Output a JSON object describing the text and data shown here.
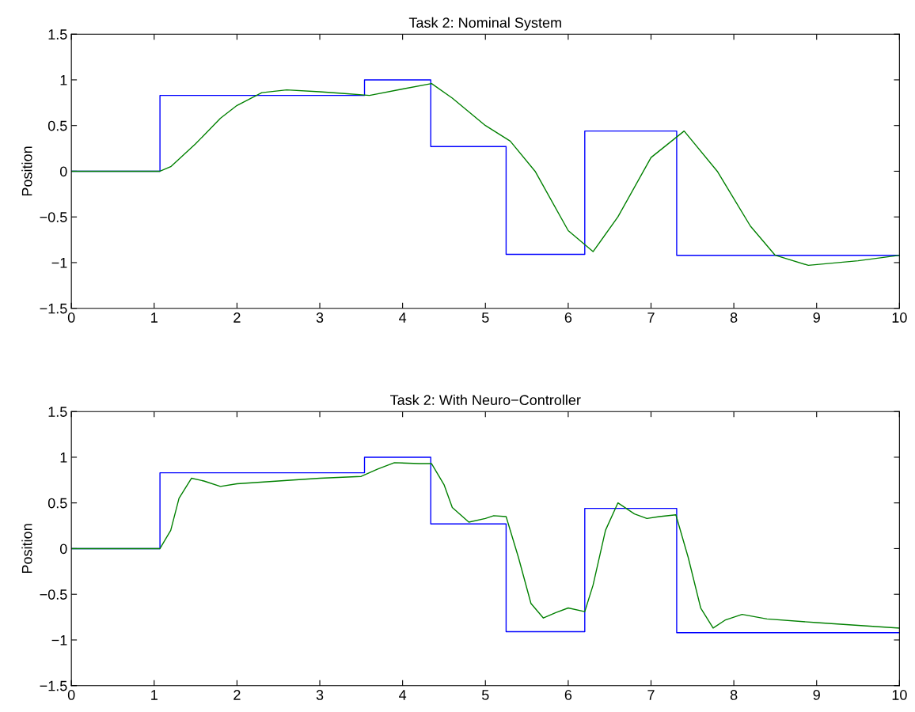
{
  "chart_data": [
    {
      "type": "line",
      "title": "Task 2: Nominal System",
      "ylabel": "Position",
      "xlim": [
        0,
        10
      ],
      "ylim": [
        -1.5,
        1.5
      ],
      "xticks": [
        0,
        1,
        2,
        3,
        4,
        5,
        6,
        7,
        8,
        9,
        10
      ],
      "yticks": [
        -1.5,
        -1,
        -0.5,
        0,
        0.5,
        1,
        1.5
      ],
      "series": [
        {
          "type": "step",
          "color": "#0000ff",
          "x": [
            0,
            1.07,
            3.54,
            4.34,
            5.25,
            6.2,
            7.31,
            10
          ],
          "values": [
            0,
            0.83,
            1.0,
            0.27,
            -0.91,
            0.44,
            -0.92,
            -0.92
          ]
        },
        {
          "color": "#008000",
          "x": [
            0,
            1.07,
            1.2,
            1.5,
            1.8,
            2.0,
            2.3,
            2.6,
            3.0,
            3.3,
            3.6,
            4.0,
            4.35,
            4.6,
            5.0,
            5.3,
            5.6,
            6.0,
            6.3,
            6.6,
            7.0,
            7.4,
            7.8,
            8.2,
            8.5,
            8.9,
            9.5,
            10
          ],
          "values": [
            0,
            0,
            0.05,
            0.3,
            0.58,
            0.72,
            0.86,
            0.89,
            0.87,
            0.85,
            0.83,
            0.9,
            0.96,
            0.8,
            0.5,
            0.33,
            0.0,
            -0.65,
            -0.88,
            -0.5,
            0.15,
            0.44,
            0.0,
            -0.6,
            -0.92,
            -1.03,
            -0.98,
            -0.92
          ]
        }
      ]
    },
    {
      "type": "line",
      "title": "Task 2: With Neuro−Controller",
      "ylabel": "Position",
      "xlim": [
        0,
        10
      ],
      "ylim": [
        -1.5,
        1.5
      ],
      "xticks": [
        0,
        1,
        2,
        3,
        4,
        5,
        6,
        7,
        8,
        9,
        10
      ],
      "yticks": [
        -1.5,
        -1,
        -0.5,
        0,
        0.5,
        1,
        1.5
      ],
      "series": [
        {
          "type": "step",
          "color": "#0000ff",
          "x": [
            0,
            1.07,
            3.54,
            4.34,
            5.25,
            6.2,
            7.31,
            10
          ],
          "values": [
            0,
            0.83,
            1.0,
            0.27,
            -0.91,
            0.44,
            -0.92,
            -0.92
          ]
        },
        {
          "color": "#008000",
          "x": [
            0,
            1.07,
            1.2,
            1.3,
            1.45,
            1.6,
            1.8,
            2.0,
            2.5,
            3.0,
            3.5,
            3.7,
            3.9,
            4.2,
            4.35,
            4.5,
            4.6,
            4.8,
            5.0,
            5.1,
            5.25,
            5.4,
            5.55,
            5.7,
            5.85,
            6.0,
            6.2,
            6.3,
            6.45,
            6.6,
            6.8,
            6.95,
            7.1,
            7.3,
            7.45,
            7.6,
            7.75,
            7.9,
            8.1,
            8.4,
            9.0,
            9.5,
            10
          ],
          "values": [
            0,
            0,
            0.2,
            0.55,
            0.77,
            0.74,
            0.68,
            0.71,
            0.74,
            0.77,
            0.79,
            0.87,
            0.94,
            0.93,
            0.93,
            0.7,
            0.45,
            0.29,
            0.33,
            0.36,
            0.35,
            -0.1,
            -0.6,
            -0.76,
            -0.7,
            -0.65,
            -0.69,
            -0.4,
            0.2,
            0.5,
            0.38,
            0.33,
            0.35,
            0.37,
            -0.1,
            -0.65,
            -0.87,
            -0.78,
            -0.72,
            -0.77,
            -0.81,
            -0.84,
            -0.87
          ]
        }
      ]
    }
  ]
}
